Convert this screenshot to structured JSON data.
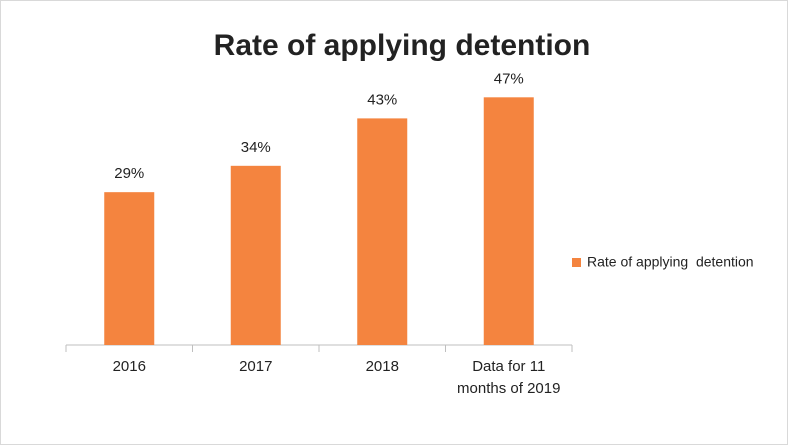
{
  "chart_data": {
    "type": "bar",
    "title": "Rate of applying detention",
    "categories": [
      "2016",
      "2017",
      "2018",
      "Data for 11 months of 2019"
    ],
    "series": [
      {
        "name": "Rate of applying  detention",
        "color": "#f4843f",
        "values": [
          29,
          34,
          43,
          47
        ],
        "value_labels": [
          "29%",
          "34%",
          "43%",
          "47%"
        ]
      }
    ],
    "legend": "right"
  }
}
